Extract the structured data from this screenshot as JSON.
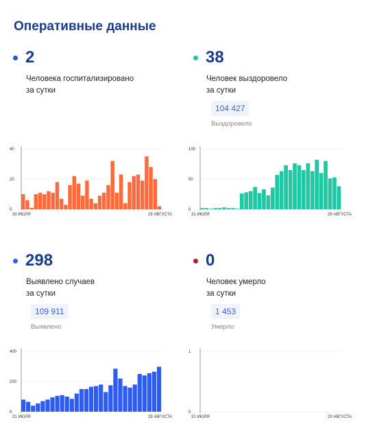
{
  "page_title": "Оперативные данные",
  "cards": [
    {
      "number": "2",
      "description": "Человека госпитализировано\nза сутки",
      "total": "",
      "total_label": "",
      "color": "#1d5ad8"
    },
    {
      "number": "38",
      "description": "Человек выздоровело\nза сутки",
      "total": "104 427",
      "total_label": "Выздоровело",
      "color": "#1fc7a3"
    },
    {
      "number": "298",
      "description": "Выявлено случаев\nза сутки",
      "total": "109 911",
      "total_label": "Выявлено",
      "color": "#2d5cf2"
    },
    {
      "number": "0",
      "description": "Человек умерло\nза сутки",
      "total": "1 453",
      "total_label": "Умерло",
      "color": "#b81a2a"
    }
  ],
  "chart_data": [
    {
      "type": "bar",
      "name": "hospitalized",
      "color": "#ff6a3d",
      "ylim": [
        0,
        40
      ],
      "yticks": [
        0,
        20,
        40
      ],
      "xlabels": [
        "30 ИЮЛЯ",
        "29 АВГУСТА"
      ],
      "values": [
        10,
        6,
        1,
        10,
        11,
        10,
        12,
        11,
        18,
        7,
        3,
        16,
        22,
        17,
        9,
        19,
        7,
        4,
        9,
        11,
        16,
        32,
        11,
        23,
        4,
        18,
        22,
        23,
        19,
        35,
        28,
        20,
        2
      ]
    },
    {
      "type": "bar",
      "name": "recovered",
      "color": "#1fc7a3",
      "ylim": [
        0,
        100
      ],
      "yticks": [
        0,
        50,
        100
      ],
      "xlabels": [
        "31 ИЮЛЯ",
        "29 АВГУСТА"
      ],
      "values": [
        2,
        2,
        1,
        2,
        2,
        3,
        2,
        2,
        1,
        26,
        28,
        30,
        37,
        27,
        33,
        23,
        36,
        57,
        63,
        73,
        65,
        76,
        73,
        65,
        76,
        63,
        82,
        60,
        80,
        51,
        53,
        38
      ]
    },
    {
      "type": "bar",
      "name": "detected",
      "color": "#2d5cf2",
      "ylim": [
        0,
        400
      ],
      "yticks": [
        0,
        200,
        400
      ],
      "xlabels": [
        "31 ИЮЛЯ",
        "29 АВГУСТА"
      ],
      "values": [
        80,
        65,
        40,
        55,
        70,
        80,
        95,
        105,
        110,
        100,
        85,
        120,
        150,
        150,
        165,
        170,
        180,
        130,
        175,
        285,
        220,
        170,
        160,
        180,
        250,
        240,
        255,
        265,
        298
      ]
    },
    {
      "type": "bar",
      "name": "deaths",
      "color": "#b81a2a",
      "ylim": [
        0,
        1
      ],
      "yticks": [
        0,
        1
      ],
      "xlabels": [
        "31 ИЮЛЯ",
        "29 АВГУСТА"
      ],
      "values": []
    }
  ]
}
